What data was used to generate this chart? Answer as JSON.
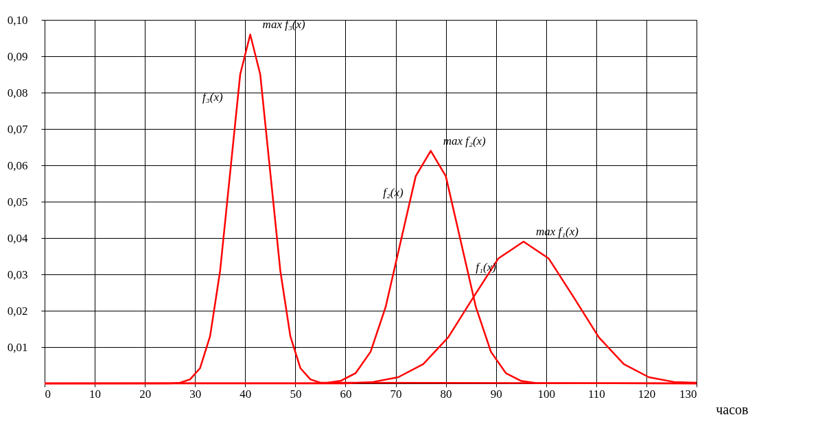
{
  "chart_data": {
    "type": "line",
    "xlabel": "часов",
    "xlim": [
      0,
      130
    ],
    "xticks": [
      0,
      10,
      20,
      30,
      40,
      50,
      60,
      70,
      80,
      90,
      100,
      110,
      120,
      130
    ],
    "ylim": [
      0,
      0.1
    ],
    "yticks": [
      {
        "value": 0.01,
        "label": "0,01"
      },
      {
        "value": 0.02,
        "label": "0,02"
      },
      {
        "value": 0.03,
        "label": "0,03"
      },
      {
        "value": 0.04,
        "label": "0,04"
      },
      {
        "value": 0.05,
        "label": "0,05"
      },
      {
        "value": 0.06,
        "label": "0,06"
      },
      {
        "value": 0.07,
        "label": "0,07"
      },
      {
        "value": 0.08,
        "label": "0,08"
      },
      {
        "value": 0.09,
        "label": "0,09"
      },
      {
        "value": 0.1,
        "label": "0,10"
      }
    ],
    "grid": true,
    "legend": false,
    "marker": "none",
    "line_style": "solid",
    "series": [
      {
        "name": "f₃(x)",
        "color": "#ff0000",
        "x": [
          0,
          25,
          27,
          29,
          31,
          33,
          35,
          37,
          39,
          41,
          43,
          45,
          47,
          49,
          51,
          53,
          55,
          130
        ],
        "values": [
          0,
          0,
          0.0002,
          0.0011,
          0.0042,
          0.013,
          0.031,
          0.058,
          0.085,
          0.096,
          0.085,
          0.058,
          0.031,
          0.013,
          0.0042,
          0.0011,
          0.0002,
          0
        ]
      },
      {
        "name": "f₂(x)",
        "color": "#ff0000",
        "x": [
          0,
          56,
          59,
          62,
          65,
          68,
          71,
          74,
          77,
          80,
          83,
          86,
          89,
          92,
          95,
          98,
          130
        ],
        "values": [
          0,
          0.0001,
          0.0007,
          0.0028,
          0.0087,
          0.021,
          0.039,
          0.057,
          0.064,
          0.057,
          0.039,
          0.021,
          0.0087,
          0.0028,
          0.0007,
          0.0001,
          0
        ]
      },
      {
        "name": "f₁(x)",
        "color": "#ff0000",
        "x": [
          0,
          60,
          65.5,
          70.5,
          75.5,
          80.5,
          85.5,
          90.5,
          95.5,
          100.5,
          105.5,
          110.5,
          115.5,
          120.5,
          125.5,
          130
        ],
        "values": [
          0,
          0,
          0.0004,
          0.0017,
          0.0053,
          0.0127,
          0.0237,
          0.0344,
          0.039,
          0.0344,
          0.0237,
          0.0127,
          0.0053,
          0.0017,
          0.0004,
          0.0002
        ]
      }
    ],
    "annotations": [
      {
        "text": "max f₃(x)",
        "x": 41,
        "y": 0.096
      },
      {
        "text": "max f₂(x)",
        "x": 77,
        "y": 0.064
      },
      {
        "text": "max f₁(x)",
        "x": 95.5,
        "y": 0.039
      }
    ]
  }
}
